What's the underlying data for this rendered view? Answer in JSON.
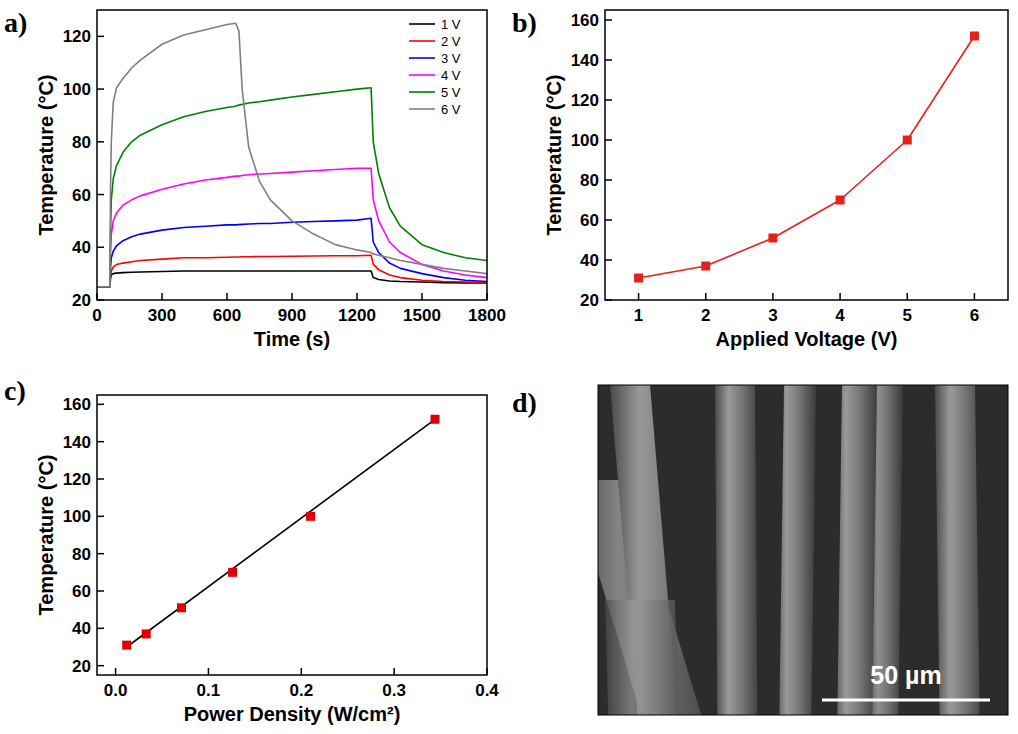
{
  "chart_data": [
    {
      "type": "line",
      "panel": "a)",
      "xlabel": "Time (s)",
      "ylabel": "Temperature (°C)",
      "xlim": [
        0,
        1800
      ],
      "xticks": [
        0,
        300,
        600,
        900,
        1200,
        1500,
        1800
      ],
      "ylim": [
        20,
        130
      ],
      "yticks": [
        20,
        40,
        60,
        80,
        100,
        120
      ],
      "grid": false,
      "legend": "upper right",
      "x": [
        0,
        60,
        62,
        66,
        75,
        90,
        120,
        160,
        200,
        300,
        400,
        500,
        600,
        640,
        655,
        670,
        700,
        750,
        800,
        900,
        1000,
        1100,
        1200,
        1265,
        1275,
        1300,
        1350,
        1400,
        1500,
        1600,
        1700,
        1800
      ],
      "series": [
        {
          "name": "1 V",
          "color": "#000000",
          "values": [
            25,
            25,
            28,
            29.5,
            30,
            30.2,
            30.4,
            30.5,
            30.6,
            30.8,
            31,
            31,
            31,
            31,
            31,
            31,
            31,
            31,
            31,
            31,
            31,
            31,
            31,
            31,
            28.5,
            27.8,
            27.2,
            27,
            26.8,
            26.6,
            26.5,
            26.5
          ]
        },
        {
          "name": "2 V",
          "color": "#ff0000",
          "values": [
            25,
            25,
            29,
            31,
            32.5,
            33.5,
            34,
            34.5,
            35,
            35.5,
            36,
            36,
            36.2,
            36.3,
            36.3,
            36.4,
            36.4,
            36.5,
            36.5,
            36.6,
            36.7,
            36.8,
            36.8,
            37,
            33.5,
            31.5,
            29.5,
            28.5,
            27.5,
            27,
            26.8,
            26.6
          ]
        },
        {
          "name": "3 V",
          "color": "#0000ff",
          "values": [
            25,
            25,
            32,
            36,
            38.5,
            40.5,
            42.5,
            44,
            45,
            46.5,
            47.5,
            48,
            48.5,
            48.5,
            48.6,
            48.7,
            48.8,
            49,
            49,
            49.5,
            49.8,
            50,
            50.3,
            51,
            42,
            38,
            34,
            32,
            30,
            28.5,
            27.5,
            27
          ]
        },
        {
          "name": "4 V",
          "color": "#ff00ff",
          "values": [
            25,
            25,
            38,
            45,
            50,
            53,
            56,
            58,
            59.5,
            62,
            64,
            65.5,
            66.5,
            67,
            67,
            67.2,
            67.5,
            67.8,
            68,
            68.5,
            69,
            69.5,
            70,
            70,
            58,
            50,
            42,
            38,
            33.5,
            31,
            29.5,
            28.5
          ]
        },
        {
          "name": "5 V",
          "color": "#008000",
          "values": [
            25,
            25,
            45,
            58,
            66,
            71,
            76,
            80,
            82.5,
            86.5,
            89.5,
            91.5,
            93,
            93.5,
            94,
            94.2,
            94.7,
            95.2,
            95.8,
            97,
            98,
            99,
            100,
            100.5,
            80,
            68,
            55,
            48,
            41,
            38,
            36,
            35
          ]
        },
        {
          "name": "6 V",
          "color": "#808080",
          "values": [
            25,
            25,
            60,
            80,
            95,
            100.5,
            104,
            108,
            111,
            117,
            120.5,
            122.5,
            124.5,
            125,
            122,
            100,
            78,
            65,
            58,
            50,
            45,
            41,
            39,
            38,
            37.5,
            37,
            36,
            35,
            33.5,
            32,
            31,
            30
          ]
        }
      ]
    },
    {
      "type": "line",
      "panel": "b)",
      "xlabel": "Applied Voltage (V)",
      "ylabel": "Temperature (°C)",
      "xlim": [
        0.5,
        6.5
      ],
      "xticks": [
        1,
        2,
        3,
        4,
        5,
        6
      ],
      "ylim": [
        20,
        165
      ],
      "yticks": [
        20,
        40,
        60,
        80,
        100,
        120,
        140,
        160
      ],
      "grid": false,
      "marker": "square",
      "x": [
        1,
        2,
        3,
        4,
        5,
        6
      ],
      "series": [
        {
          "color": "#e8201c",
          "values": [
            31,
            37,
            51,
            70,
            100,
            152
          ]
        }
      ]
    },
    {
      "type": "scatter",
      "panel": "c)",
      "xlabel": "Power Density (W/cm²)",
      "ylabel": "Temperature (°C)",
      "xlim": [
        -0.02,
        0.4
      ],
      "xticks": [
        {
          "value": 0,
          "label": "0.0"
        },
        0.1,
        0.2,
        0.3,
        0.4
      ],
      "ylim": [
        15,
        165
      ],
      "yticks": [
        20,
        40,
        60,
        80,
        100,
        120,
        140,
        160
      ],
      "grid": false,
      "series": [
        {
          "type": "line",
          "color": "#000000",
          "x": [
            0.012,
            0.344
          ],
          "values": [
            30,
            152
          ]
        },
        {
          "type": "scatter",
          "marker": "square",
          "color": "#e00000",
          "x": [
            0.012,
            0.033,
            0.071,
            0.126,
            0.21,
            0.344
          ],
          "values": [
            31,
            37,
            51,
            70,
            100,
            152
          ]
        }
      ]
    }
  ],
  "image": {
    "panel": "d)",
    "scale_bar": "50 µm"
  }
}
